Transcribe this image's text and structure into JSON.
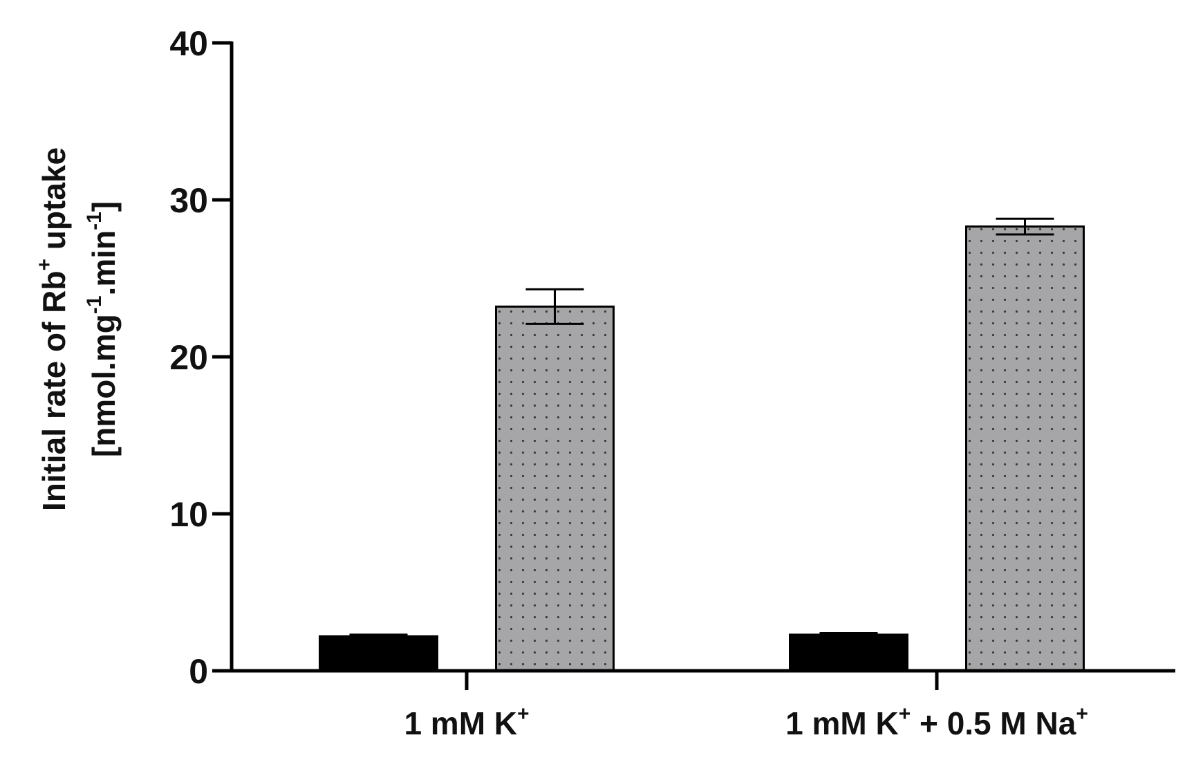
{
  "chart_data": {
    "type": "bar",
    "categories": [
      {
        "base": "1 mM K",
        "sup1": "+",
        "mid": "",
        "sup2": ""
      },
      {
        "base": "1 mM K",
        "sup1": "+",
        "mid": " + 0.5 M Na",
        "sup2": "+"
      }
    ],
    "series": [
      {
        "values": [
          2.2,
          2.3
        ],
        "errors": [
          0.1,
          0.1
        ],
        "color": "#000000",
        "pattern": "solid"
      },
      {
        "values": [
          23.2,
          28.3
        ],
        "errors": [
          1.1,
          0.5
        ],
        "color": "#a6a6a9",
        "pattern": "dotted"
      }
    ],
    "ylim": [
      0,
      40
    ],
    "yticks": [
      0,
      10,
      20,
      30,
      40
    ],
    "ylabel": {
      "line1_a": "Initial rate of Rb",
      "line1_sup": "+",
      "line1_b": " uptake",
      "line2_a": "[nmol.mg",
      "line2_sup1": "-1",
      "line2_b": ".min",
      "line2_sup2": "-1",
      "line2_c": "]"
    },
    "xlabel": "",
    "title": "",
    "grid": false,
    "legend": "none"
  }
}
